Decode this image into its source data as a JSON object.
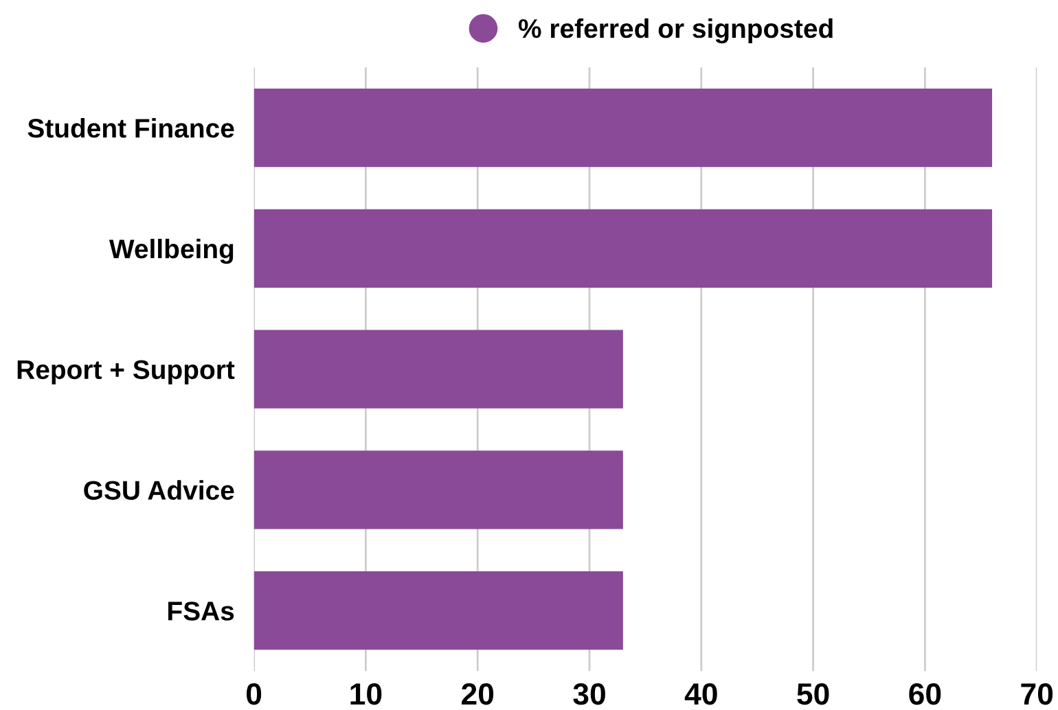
{
  "chart_data": {
    "type": "bar",
    "orientation": "horizontal",
    "categories": [
      "Student Finance",
      "Wellbeing",
      "Report + Support",
      "GSU Advice",
      "FSAs"
    ],
    "series": [
      {
        "name": "% referred or signposted",
        "color": "#8b4a97",
        "values": [
          66,
          66,
          33,
          33,
          33
        ]
      }
    ],
    "xlim": [
      0,
      70
    ],
    "xticks": [
      0,
      10,
      20,
      30,
      40,
      50,
      60,
      70
    ],
    "grid": "x",
    "legend": "top"
  }
}
